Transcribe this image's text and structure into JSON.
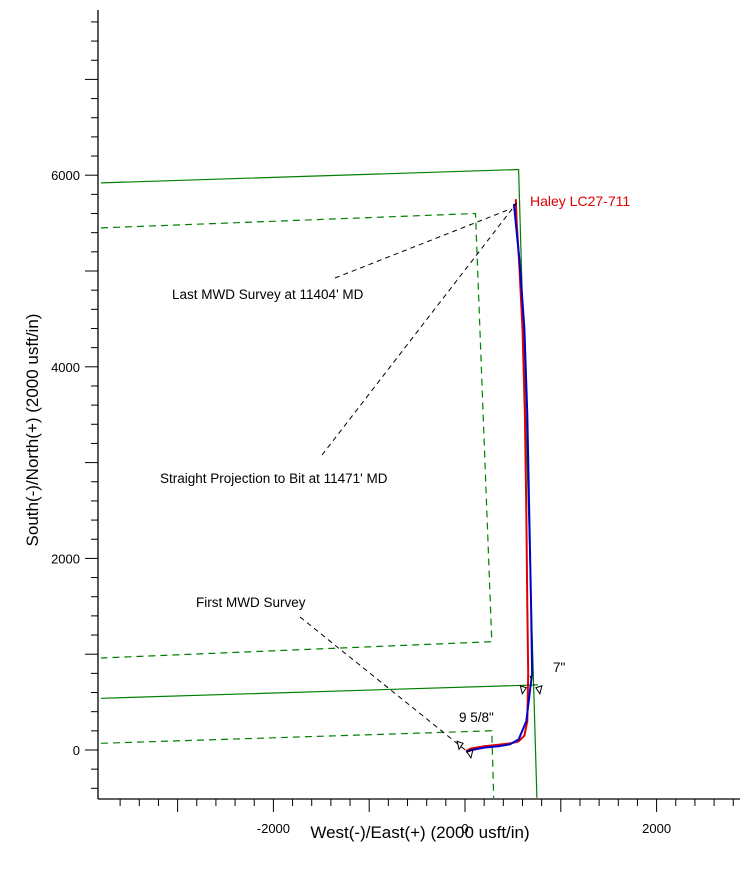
{
  "chart_data": {
    "type": "line",
    "title": "",
    "xlabel": "West(-)/East(+) (2000 usft/in)",
    "ylabel": "South(-)/North(+) (2000 usft/in)",
    "xlim": [
      -3800,
      2900
    ],
    "ylim": [
      -500,
      7700
    ],
    "x_tick_labels": [
      {
        "value": -2000,
        "label": "-2000"
      },
      {
        "value": 0,
        "label": "0"
      },
      {
        "value": 2000,
        "label": "2000"
      }
    ],
    "y_tick_labels": [
      {
        "value": 0,
        "label": "0"
      },
      {
        "value": 2000,
        "label": "2000"
      },
      {
        "value": 4000,
        "label": "4000"
      },
      {
        "value": 6000,
        "label": "6000"
      }
    ],
    "series": [
      {
        "name": "Haley LC27-711",
        "color": "#e00000",
        "points": [
          [
            10,
            -10
          ],
          [
            60,
            15
          ],
          [
            200,
            40
          ],
          [
            350,
            55
          ],
          [
            480,
            70
          ],
          [
            560,
            90
          ],
          [
            620,
            150
          ],
          [
            650,
            300
          ],
          [
            660,
            800
          ],
          [
            650,
            1500
          ],
          [
            640,
            2500
          ],
          [
            625,
            3500
          ],
          [
            600,
            4400
          ],
          [
            565,
            5100
          ],
          [
            540,
            5500
          ],
          [
            530,
            5750
          ]
        ]
      },
      {
        "color": "#0000cc",
        "points": [
          [
            10,
            -20
          ],
          [
            70,
            0
          ],
          [
            200,
            25
          ],
          [
            350,
            40
          ],
          [
            470,
            60
          ],
          [
            560,
            110
          ],
          [
            640,
            300
          ],
          [
            700,
            800
          ],
          [
            690,
            1500
          ],
          [
            670,
            2500
          ],
          [
            650,
            3500
          ],
          [
            620,
            4400
          ],
          [
            570,
            5100
          ],
          [
            530,
            5500
          ],
          [
            510,
            5700
          ]
        ]
      }
    ],
    "lease_lines": [
      {
        "style": "solid",
        "color": "#008000",
        "points": [
          [
            -3800,
            5920
          ],
          [
            560,
            6060
          ],
          [
            750,
            -500
          ]
        ]
      },
      {
        "style": "solid",
        "color": "#008000",
        "points": [
          [
            -3800,
            540
          ],
          [
            760,
            680
          ]
        ]
      },
      {
        "style": "dashed",
        "color": "#008000",
        "points": [
          [
            -3800,
            5450
          ],
          [
            110,
            5600
          ],
          [
            280,
            1130
          ],
          [
            -3800,
            960
          ]
        ]
      },
      {
        "style": "dashed",
        "color": "#008000",
        "points": [
          [
            -3800,
            70
          ],
          [
            280,
            200
          ],
          [
            300,
            -500
          ]
        ]
      }
    ],
    "annotations": [
      {
        "text": "Haley LC27-711",
        "color": "#e00000",
        "x": 520,
        "y": 5720
      },
      {
        "text": "Last MWD Survey at 11404' MD",
        "color": "#000000",
        "x": 470,
        "y": 5680
      },
      {
        "text": "Straight Projection to Bit at 11471' MD",
        "color": "#000000",
        "x": 520,
        "y": 5700
      },
      {
        "text": "First MWD Survey",
        "color": "#000000",
        "x": -20,
        "y": 30
      },
      {
        "text": "9 5/8\"",
        "color": "#000000",
        "x": 0,
        "y": 80
      },
      {
        "text": "7\"",
        "color": "#000000",
        "x": 720,
        "y": 680
      }
    ],
    "grid": false,
    "legend": "none"
  }
}
